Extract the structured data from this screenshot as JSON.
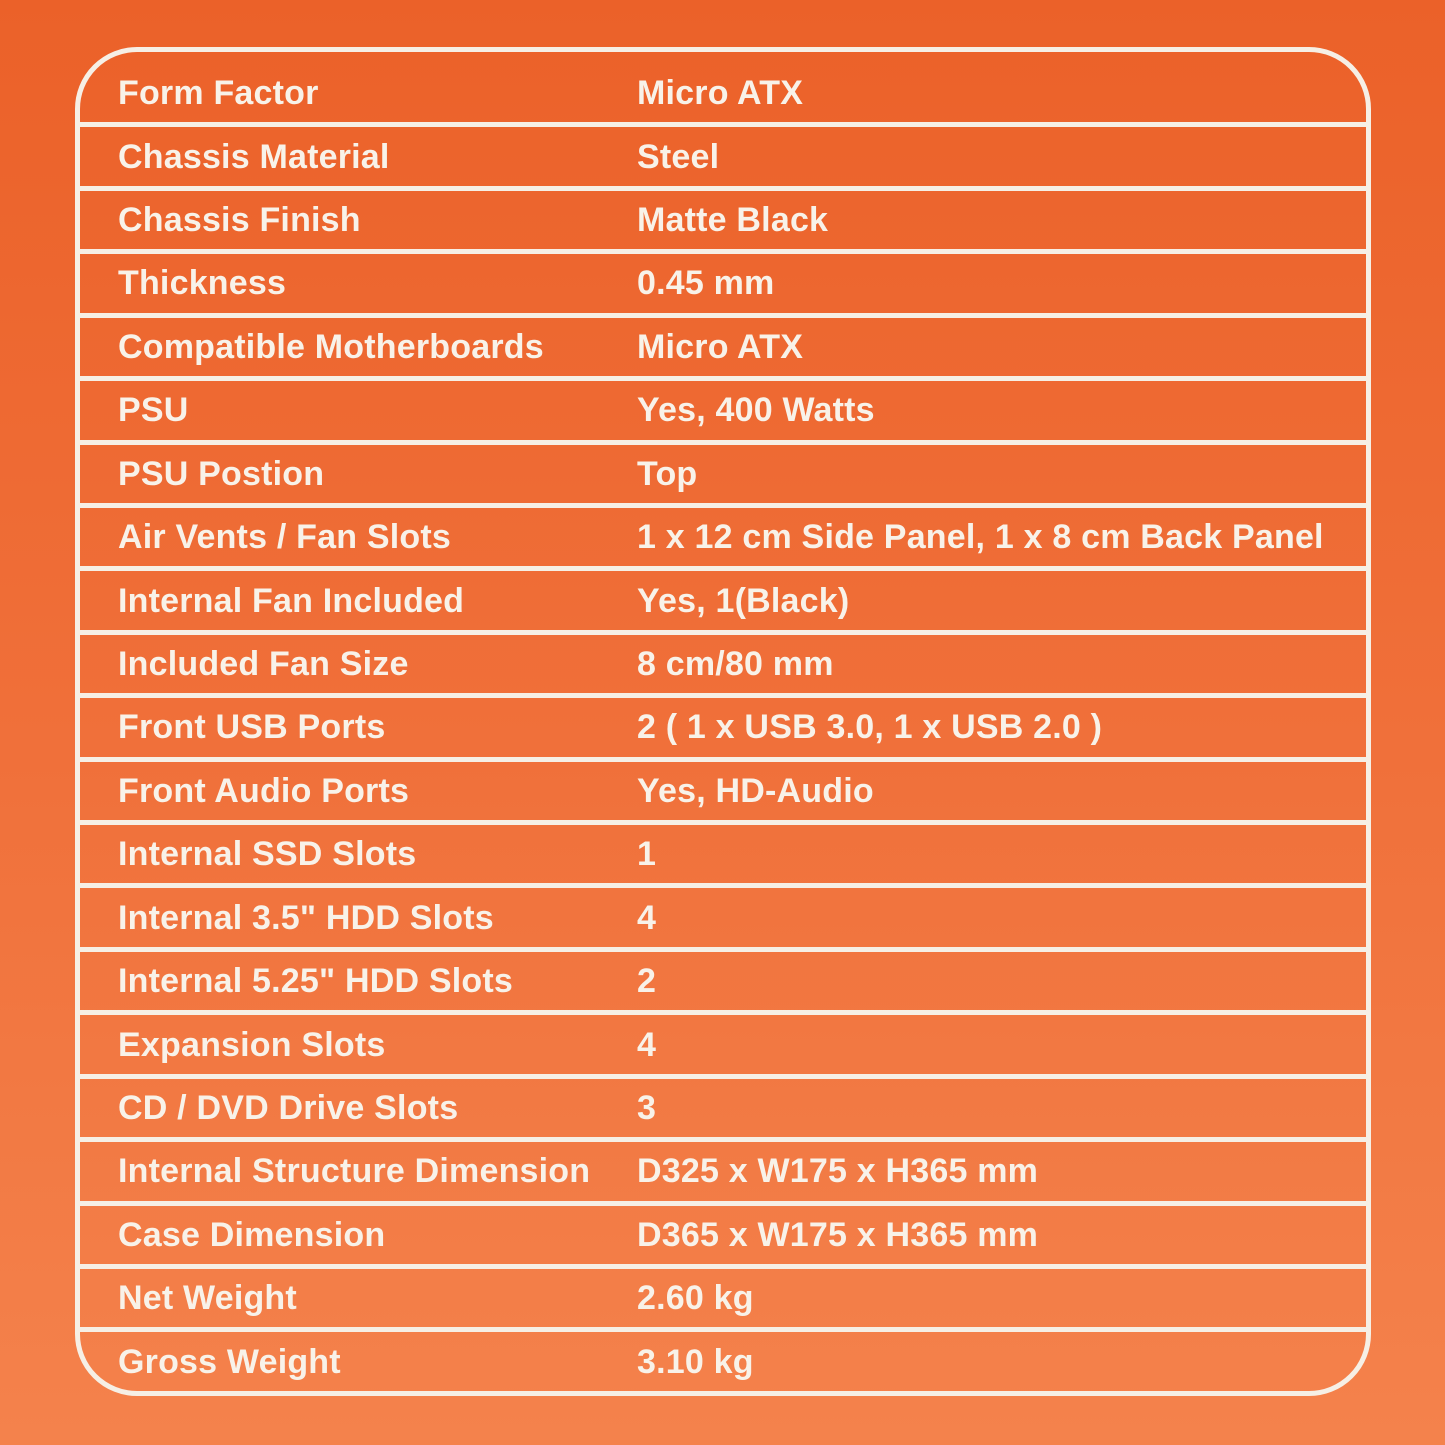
{
  "title": "PC Cabinet Specification Table",
  "colors": {
    "background_gradient_top": "#EB6129",
    "background_gradient_bottom": "#F4824C",
    "border_and_text": "#F6EFE5",
    "text": "#F8F2E9"
  },
  "table": {
    "rows": [
      {
        "label": "Form Factor",
        "value": "Micro ATX"
      },
      {
        "label": "Chassis Material",
        "value": "Steel"
      },
      {
        "label": "Chassis Finish",
        "value": "Matte Black"
      },
      {
        "label": "Thickness",
        "value": "0.45 mm"
      },
      {
        "label": "Compatible Motherboards",
        "value": "Micro ATX"
      },
      {
        "label": "PSU",
        "value": "Yes, 400 Watts"
      },
      {
        "label": "PSU Postion",
        "value": "Top"
      },
      {
        "label": "Air Vents / Fan Slots",
        "value": "1 x 12 cm Side Panel, 1 x 8 cm Back Panel"
      },
      {
        "label": "Internal Fan Included",
        "value": "Yes, 1(Black)"
      },
      {
        "label": "Included Fan Size",
        "value": "8 cm/80 mm"
      },
      {
        "label": "Front USB Ports",
        "value": "2 ( 1 x USB 3.0, 1 x USB 2.0 )"
      },
      {
        "label": "Front Audio Ports",
        "value": "Yes, HD-Audio"
      },
      {
        "label": "Internal SSD Slots",
        "value": "1"
      },
      {
        "label": "Internal 3.5\" HDD Slots",
        "value": "4"
      },
      {
        "label": "Internal 5.25\" HDD Slots",
        "value": "2"
      },
      {
        "label": "Expansion Slots",
        "value": "4"
      },
      {
        "label": "CD / DVD Drive Slots",
        "value": "3"
      },
      {
        "label": "Internal Structure Dimension",
        "value": "D325 x W175 x H365 mm"
      },
      {
        "label": "Case Dimension",
        "value": "D365 x W175 x H365 mm"
      },
      {
        "label": "Net Weight",
        "value": "2.60 kg"
      },
      {
        "label": "Gross Weight",
        "value": "3.10 kg"
      }
    ]
  }
}
